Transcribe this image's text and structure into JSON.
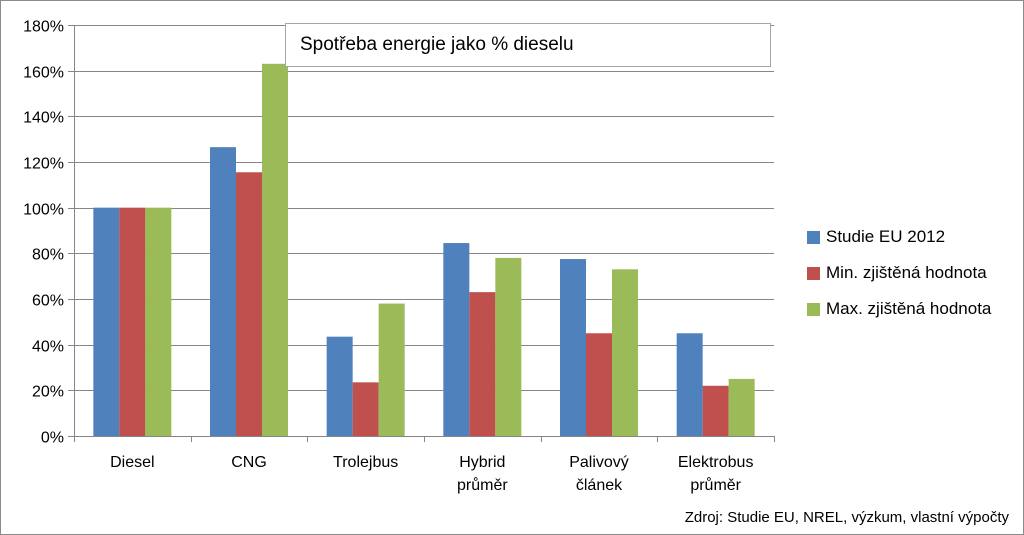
{
  "chart_data": {
    "type": "bar",
    "title": "Spotřeba energie jako % dieselu",
    "categories": [
      [
        "Diesel"
      ],
      [
        "CNG"
      ],
      [
        "Trolejbus"
      ],
      [
        "Hybrid",
        "průměr"
      ],
      [
        "Palivový",
        "článek"
      ],
      [
        "Elektrobus",
        "průměr"
      ]
    ],
    "series": [
      {
        "name": "Studie EU  2012",
        "color": "#4f81bd",
        "values": [
          100,
          126.5,
          43.5,
          84.5,
          77.5,
          45
        ]
      },
      {
        "name": "Min. zjištěná hodnota",
        "color": "#c0504d",
        "values": [
          100,
          115.5,
          23.5,
          63,
          45,
          22
        ]
      },
      {
        "name": "Max. zjištěná hodnota",
        "color": "#9bbb59",
        "values": [
          100,
          163,
          58,
          78,
          73,
          25
        ]
      }
    ],
    "yticks": [
      "0%",
      "20%",
      "40%",
      "60%",
      "80%",
      "100%",
      "120%",
      "140%",
      "160%",
      "180%"
    ],
    "ylim": [
      0,
      180
    ],
    "grid": true,
    "legend_position": "right",
    "source": "Zdroj: Studie EU, NREL, výzkum, vlastní výpočty"
  }
}
